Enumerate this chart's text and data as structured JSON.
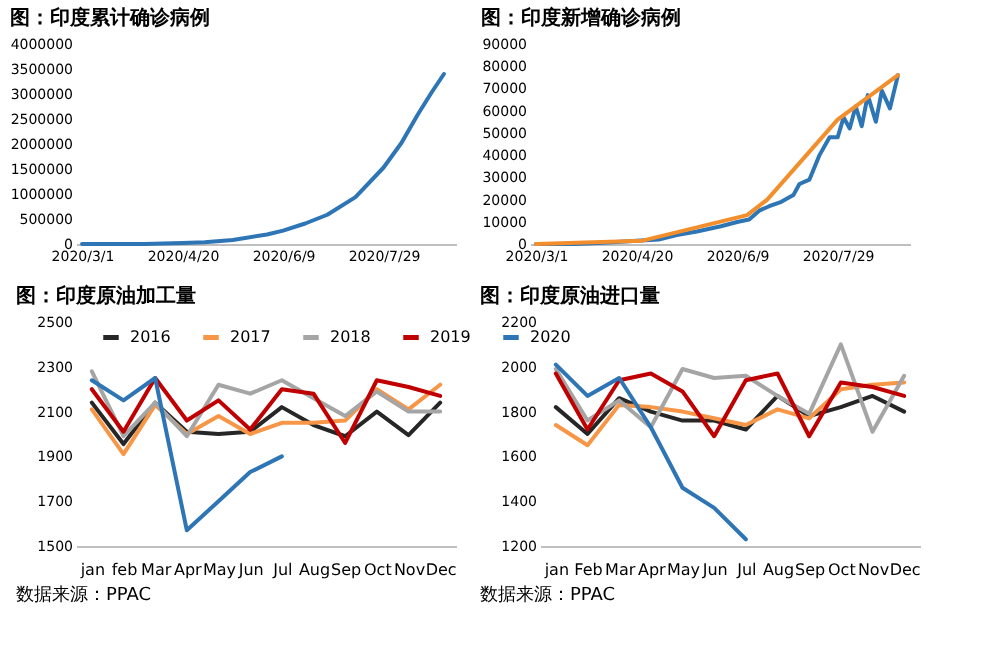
{
  "chart_data": [
    {
      "type": "line",
      "title": "图：印度累计确诊病例",
      "xlim": [
        "2020-02-27",
        "2020-09-03"
      ],
      "xticks": [
        {
          "value": "2020-03-01",
          "label": "2020/3/1"
        },
        {
          "value": "2020-04-20",
          "label": "2020/4/20"
        },
        {
          "value": "2020-06-09",
          "label": "2020/6/9"
        },
        {
          "value": "2020-07-29",
          "label": "2020/7/29"
        }
      ],
      "ylim": [
        0,
        4000000
      ],
      "yticks": [
        0,
        500000,
        1000000,
        1500000,
        2000000,
        2500000,
        3000000,
        3500000,
        4000000
      ],
      "x": [
        "2020-03-01",
        "2020-04-01",
        "2020-04-20",
        "2020-05-01",
        "2020-05-15",
        "2020-06-01",
        "2020-06-09",
        "2020-06-20",
        "2020-07-01",
        "2020-07-15",
        "2020-07-29",
        "2020-08-07",
        "2020-08-15",
        "2020-08-22",
        "2020-08-28"
      ],
      "series": [
        {
          "color": "#2e75b6",
          "values": [
            3,
            2000,
            18000,
            35000,
            82000,
            190000,
            267000,
            410000,
            585000,
            937000,
            1530000,
            2030000,
            2590000,
            3040000,
            3400000
          ]
        }
      ]
    },
    {
      "type": "line",
      "title": "图：印度新增确诊病例",
      "xlim": [
        "2020-02-27",
        "2020-09-03"
      ],
      "xticks": [
        {
          "value": "2020-03-01",
          "label": "2020/3/1"
        },
        {
          "value": "2020-04-20",
          "label": "2020/4/20"
        },
        {
          "value": "2020-06-09",
          "label": "2020/6/9"
        },
        {
          "value": "2020-07-29",
          "label": "2020/7/29"
        }
      ],
      "ylim": [
        0,
        90000
      ],
      "yticks": [
        0,
        10000,
        20000,
        30000,
        40000,
        50000,
        60000,
        70000,
        80000,
        90000
      ],
      "series": [
        {
          "color": "#2e75b6",
          "x": [
            "2020-03-01",
            "2020-03-20",
            "2020-04-01",
            "2020-04-10",
            "2020-04-20",
            "2020-05-01",
            "2020-05-10",
            "2020-05-20",
            "2020-06-01",
            "2020-06-09",
            "2020-06-15",
            "2020-06-20",
            "2020-06-25",
            "2020-07-01",
            "2020-07-07",
            "2020-07-10",
            "2020-07-15",
            "2020-07-20",
            "2020-07-25",
            "2020-07-29",
            "2020-08-01",
            "2020-08-04",
            "2020-08-07",
            "2020-08-10",
            "2020-08-13",
            "2020-08-17",
            "2020-08-20",
            "2020-08-24",
            "2020-08-28"
          ],
          "values": [
            0,
            50,
            400,
            900,
            1500,
            2000,
            4000,
            5600,
            8000,
            9900,
            11000,
            15000,
            17000,
            19000,
            22000,
            27000,
            29000,
            40000,
            48000,
            48000,
            57000,
            52000,
            62000,
            53000,
            67000,
            55000,
            69000,
            61000,
            76000
          ]
        },
        {
          "color": "#f28e2b",
          "x": [
            "2020-03-01",
            "2020-04-23",
            "2020-06-14",
            "2020-06-24",
            "2020-07-29",
            "2020-08-28"
          ],
          "values": [
            0,
            1500,
            13000,
            20000,
            56000,
            76000
          ]
        }
      ]
    },
    {
      "type": "line",
      "title": "图：印度原油加工量",
      "legend": "top",
      "categories": [
        "jan",
        "feb",
        "Mar",
        "Apr",
        "May",
        "Jun",
        "Jul",
        "Aug",
        "Sep",
        "Oct",
        "Nov",
        "Dec"
      ],
      "ylim": [
        1500,
        2500
      ],
      "yticks": [
        1500,
        1700,
        1900,
        2100,
        2300,
        2500
      ],
      "annotations": [
        "数据来源：PPAC"
      ],
      "series": [
        {
          "name": "2016",
          "color": "#262626",
          "values": [
            2140,
            1955,
            2140,
            2010,
            2000,
            2010,
            2120,
            2040,
            1990,
            2100,
            1995,
            2140
          ]
        },
        {
          "name": "2017",
          "color": "#f79646",
          "values": [
            2110,
            1910,
            2130,
            2000,
            2080,
            2000,
            2050,
            2050,
            2060,
            2200,
            2110,
            2220
          ]
        },
        {
          "name": "2018",
          "color": "#a5a5a5",
          "values": [
            2280,
            1990,
            2140,
            1990,
            2220,
            2180,
            2240,
            2160,
            2080,
            2190,
            2100,
            2100
          ]
        },
        {
          "name": "2019",
          "color": "#c00000",
          "values": [
            2200,
            2010,
            2250,
            2060,
            2150,
            2020,
            2200,
            2180,
            1960,
            2240,
            2210,
            2170
          ]
        },
        {
          "name": "2020",
          "color": "#2e75b6",
          "values": [
            2240,
            2150,
            2250,
            1570,
            1700,
            1830,
            1900,
            null,
            null,
            null,
            null,
            null
          ]
        }
      ]
    },
    {
      "type": "line",
      "title": "图：印度原油进口量",
      "legend": "top",
      "categories": [
        "jan",
        "Feb",
        "Mar",
        "Apr",
        "May",
        "Jun",
        "Jul",
        "Aug",
        "Sep",
        "Oct",
        "Nov",
        "Dec"
      ],
      "ylim": [
        1200,
        2200
      ],
      "yticks": [
        1200,
        1400,
        1600,
        1800,
        2000,
        2200
      ],
      "annotations": [
        "数据来源：PPAC"
      ],
      "series": [
        {
          "name": "2016",
          "color": "#262626",
          "values": [
            1820,
            1700,
            1860,
            1800,
            1760,
            1760,
            1720,
            1870,
            1780,
            1820,
            1870,
            1800
          ]
        },
        {
          "name": "2017",
          "color": "#f79646",
          "values": [
            1740,
            1650,
            1830,
            1820,
            1800,
            1770,
            1740,
            1810,
            1770,
            1900,
            1920,
            1930
          ]
        },
        {
          "name": "2018",
          "color": "#a5a5a5",
          "values": [
            1990,
            1760,
            1850,
            1730,
            1990,
            1950,
            1960,
            1870,
            1790,
            2100,
            1710,
            1960
          ]
        },
        {
          "name": "2019",
          "color": "#c00000",
          "values": [
            1970,
            1720,
            1940,
            1970,
            1890,
            1690,
            1940,
            1970,
            1690,
            1930,
            1910,
            1870
          ]
        },
        {
          "name": "2020",
          "color": "#2e75b6",
          "values": [
            2010,
            1870,
            1950,
            1730,
            1460,
            1370,
            1230,
            null,
            null,
            null,
            null,
            null
          ]
        }
      ]
    }
  ]
}
